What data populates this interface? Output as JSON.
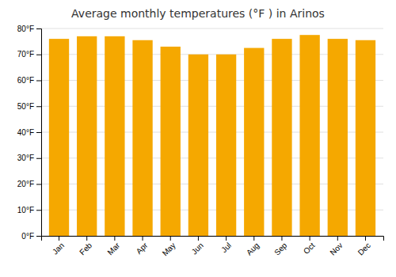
{
  "chart_data": {
    "type": "bar",
    "title": "Average monthly temperatures (°F ) in Arinos",
    "categories": [
      "Jan",
      "Feb",
      "Mar",
      "Apr",
      "May",
      "Jun",
      "Jul",
      "Aug",
      "Sep",
      "Oct",
      "Nov",
      "Dec"
    ],
    "values": [
      76,
      77,
      77,
      75.5,
      73,
      70,
      70,
      72.5,
      76,
      77.5,
      76,
      75.5
    ],
    "color": "#F5A800",
    "ylim": [
      0,
      80
    ],
    "yticks": [
      {
        "value": 0,
        "label": "0°F"
      },
      {
        "value": 10,
        "label": "10°F"
      },
      {
        "value": 20,
        "label": "20°F"
      },
      {
        "value": 30,
        "label": "30°F"
      },
      {
        "value": 40,
        "label": "40°F"
      },
      {
        "value": 50,
        "label": "50°F"
      },
      {
        "value": 60,
        "label": "60°F"
      },
      {
        "value": 70,
        "label": "70°F"
      },
      {
        "value": 80,
        "label": "80°F"
      }
    ],
    "grid": true
  }
}
